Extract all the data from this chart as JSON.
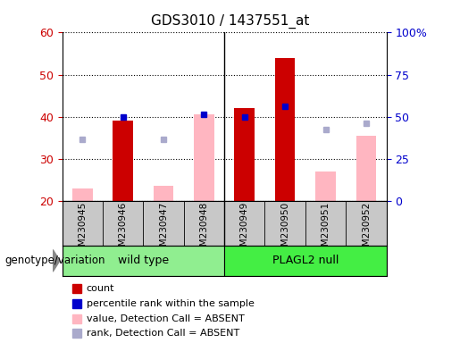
{
  "title": "GDS3010 / 1437551_at",
  "samples": [
    "GSM230945",
    "GSM230946",
    "GSM230947",
    "GSM230948",
    "GSM230949",
    "GSM230950",
    "GSM230951",
    "GSM230952"
  ],
  "ylim_left": [
    20,
    60
  ],
  "ylim_right": [
    0,
    100
  ],
  "yticks_left": [
    20,
    30,
    40,
    50,
    60
  ],
  "yticks_right": [
    0,
    25,
    50,
    75,
    100
  ],
  "ytick_labels_right": [
    "0",
    "25",
    "50",
    "75",
    "100%"
  ],
  "red_bars": [
    null,
    39.0,
    null,
    null,
    42.0,
    54.0,
    null,
    null
  ],
  "blue_dots": [
    null,
    40.0,
    null,
    40.5,
    40.0,
    42.5,
    null,
    null
  ],
  "pink_bars": [
    23.0,
    null,
    23.5,
    40.5,
    null,
    null,
    27.0,
    35.5
  ],
  "lavender_dots": [
    34.5,
    null,
    34.5,
    null,
    null,
    null,
    37.0,
    38.5
  ],
  "bar_width": 0.5,
  "red_bar_color": "#CC0000",
  "pink_bar_color": "#FFB6C1",
  "blue_dot_color": "#0000CC",
  "lavender_dot_color": "#AAAACC",
  "plot_bg_color": "#FFFFFF",
  "sample_bg_color": "#C8C8C8",
  "wt_color": "#90EE90",
  "null_color": "#44EE44",
  "left_axis_color": "#CC0000",
  "right_axis_color": "#0000CC",
  "legend_items": [
    "count",
    "percentile rank within the sample",
    "value, Detection Call = ABSENT",
    "rank, Detection Call = ABSENT"
  ],
  "legend_colors": [
    "#CC0000",
    "#0000CC",
    "#FFB6C1",
    "#AAAACC"
  ],
  "annotation_label": "genotype/variation",
  "group_label_names": [
    "wild type",
    "PLAGL2 null"
  ]
}
